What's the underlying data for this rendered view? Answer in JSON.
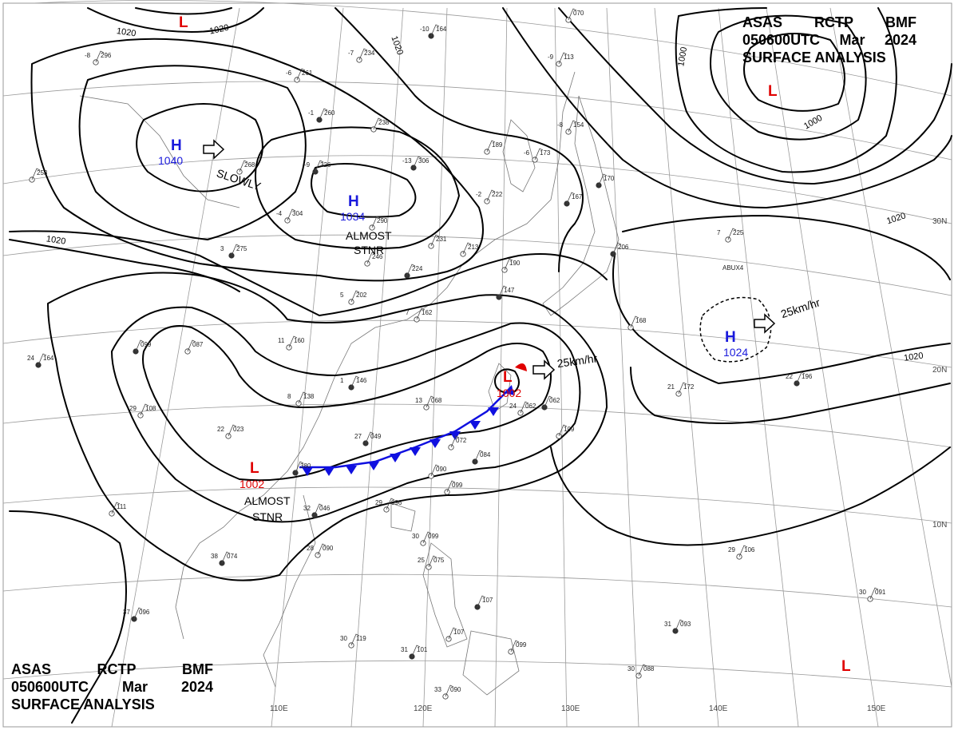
{
  "header": {
    "line1": [
      "ASAS",
      "RCTP",
      "BMF"
    ],
    "line2": [
      "050600UTC",
      "Mar",
      "2024"
    ],
    "line3": "SURFACE ANALYSIS"
  },
  "colors": {
    "high": "#1a1adc",
    "low": "#e00000",
    "front_cold": "#1010e0",
    "front_warm": "#e00000",
    "isobar": "#000000",
    "grid": "#9a9a9a",
    "coast": "#777777"
  },
  "longitude_labels": [
    "110E",
    "120E",
    "130E",
    "140E",
    "150E"
  ],
  "latitude_labels": [
    "30N",
    "20N",
    "10N"
  ],
  "isobar_labels": [
    "1020",
    "1020",
    "1020",
    "1000",
    "1000",
    "1020",
    "1020",
    "1020"
  ],
  "pressure_systems": [
    {
      "type": "H",
      "value": "1040",
      "motion": "SLOWLY"
    },
    {
      "type": "H",
      "value": "1034",
      "motion": "ALMOST STNR"
    },
    {
      "type": "L",
      "value": "",
      "motion": ""
    },
    {
      "type": "L",
      "value": "",
      "motion": ""
    },
    {
      "type": "H",
      "value": "1024",
      "motion": "25km/hr"
    },
    {
      "type": "L",
      "value": "1002",
      "motion": "25km/hr"
    },
    {
      "type": "L",
      "value": "1002",
      "motion": "ALMOST STNR"
    },
    {
      "type": "L",
      "value": "",
      "motion": ""
    }
  ],
  "station_plots": [
    {
      "t": "-10",
      "p": "164"
    },
    {
      "t": "-7",
      "p": "234"
    },
    {
      "t": "-6",
      "p": "261"
    },
    {
      "t": "-1",
      "p": "260"
    },
    {
      "t": "",
      "p": "238"
    },
    {
      "t": "-8",
      "p": "296"
    },
    {
      "t": "-9",
      "p": "326"
    },
    {
      "t": "-4",
      "p": "304"
    },
    {
      "t": "",
      "p": "290"
    },
    {
      "t": "-13",
      "p": "306"
    },
    {
      "t": "",
      "p": "189"
    },
    {
      "t": "-2",
      "p": "222"
    },
    {
      "t": "",
      "p": "167"
    },
    {
      "t": "-8",
      "p": "154"
    },
    {
      "t": "-6",
      "p": "173"
    },
    {
      "t": "",
      "p": "170"
    },
    {
      "t": "-9",
      "p": "113"
    },
    {
      "t": "",
      "p": "070"
    },
    {
      "t": "3",
      "p": "275"
    },
    {
      "t": "",
      "p": "246"
    },
    {
      "t": "",
      "p": "231"
    },
    {
      "t": "",
      "p": "224"
    },
    {
      "t": "",
      "p": "213"
    },
    {
      "t": "",
      "p": "190"
    },
    {
      "t": "",
      "p": "147"
    },
    {
      "t": "5",
      "p": "202"
    },
    {
      "t": "7",
      "p": "162"
    },
    {
      "t": "",
      "p": "099"
    },
    {
      "t": "",
      "p": "087"
    },
    {
      "t": "11",
      "p": "160"
    },
    {
      "t": "1",
      "p": "146"
    },
    {
      "t": "8",
      "p": "138"
    },
    {
      "t": "13",
      "p": "068"
    },
    {
      "t": "",
      "p": "062"
    },
    {
      "t": "24",
      "p": "062"
    },
    {
      "t": "",
      "p": "109"
    },
    {
      "t": "27",
      "p": "049"
    },
    {
      "t": "22",
      "p": "023"
    },
    {
      "t": "",
      "p": "072"
    },
    {
      "t": "",
      "p": "084"
    },
    {
      "t": "",
      "p": "090"
    },
    {
      "t": "",
      "p": "099"
    },
    {
      "t": "32",
      "p": "046"
    },
    {
      "t": "29",
      "p": "096"
    },
    {
      "t": "28",
      "p": "090"
    },
    {
      "t": "38",
      "p": "074"
    },
    {
      "t": "30",
      "p": "099"
    },
    {
      "t": "25",
      "p": "075"
    },
    {
      "t": "",
      "p": "107"
    },
    {
      "t": "",
      "p": "107"
    },
    {
      "t": "30",
      "p": "119"
    },
    {
      "t": "31",
      "p": "101"
    },
    {
      "t": "",
      "p": "099"
    },
    {
      "t": "33",
      "p": "090"
    },
    {
      "t": "37",
      "p": "096"
    },
    {
      "t": "",
      "p": "111"
    },
    {
      "t": "29",
      "p": "108"
    },
    {
      "t": "24",
      "p": "164"
    },
    {
      "t": "",
      "p": "253"
    },
    {
      "t": "",
      "p": "268"
    },
    {
      "t": "",
      "p": "206"
    },
    {
      "t": "",
      "p": "168"
    },
    {
      "t": "21",
      "p": "172"
    },
    {
      "t": "22",
      "p": "196"
    },
    {
      "t": "7",
      "p": "225"
    },
    {
      "t": "29",
      "p": "106"
    },
    {
      "t": "31",
      "p": "093"
    },
    {
      "t": "30",
      "p": "088"
    },
    {
      "t": "30",
      "p": "091"
    },
    {
      "t": "",
      "p": "380"
    }
  ],
  "ship_label": "ABUX4"
}
